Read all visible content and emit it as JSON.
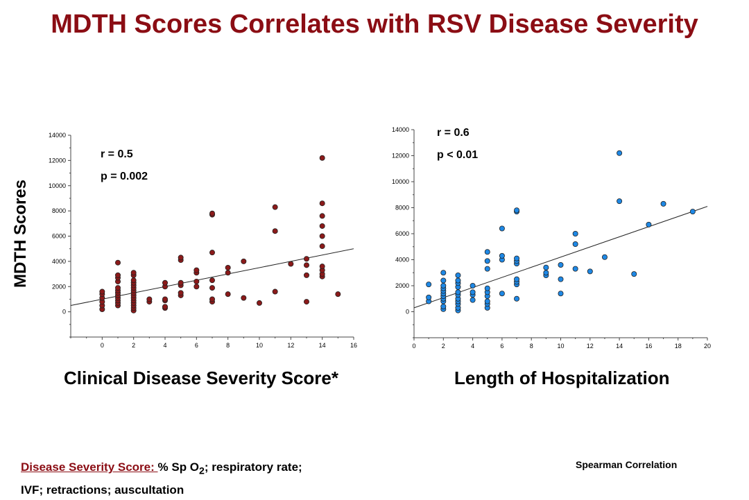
{
  "title": "MDTH Scores Correlates with RSV Disease Severity",
  "y_axis_label": "MDTH Scores",
  "footnote": {
    "label": "Disease Severity Score: ",
    "line1_pre": " % Sp O",
    "line1_sub": "2",
    "line1_post": "; respiratory rate;",
    "line2": "IVF; retractions; auscultation"
  },
  "spearman_note": "Spearman Correlation",
  "colors": {
    "title": "#8b0d14",
    "left_points": "#8b1a1a",
    "right_points": "#1e88e5"
  },
  "chart_data": [
    {
      "type": "scatter",
      "title": "",
      "xlabel": "Clinical Disease Severity Score*",
      "ylabel": "MDTH Scores",
      "xlim": [
        -2,
        16
      ],
      "ylim": [
        -2000,
        14000
      ],
      "x_ticks": [
        0,
        2,
        4,
        6,
        8,
        10,
        12,
        14,
        16
      ],
      "y_ticks": [
        0,
        2000,
        4000,
        6000,
        8000,
        10000,
        12000,
        14000
      ],
      "annotations": [
        "r = 0.5",
        "p = 0.002"
      ],
      "trendline": {
        "x": [
          -2,
          16
        ],
        "y": [
          500,
          5000
        ]
      },
      "color": "#8b1a1a",
      "points": [
        [
          0,
          200
        ],
        [
          0,
          500
        ],
        [
          0,
          800
        ],
        [
          0,
          1100
        ],
        [
          0,
          1400
        ],
        [
          0,
          1600
        ],
        [
          1,
          500
        ],
        [
          1,
          700
        ],
        [
          1,
          900
        ],
        [
          1,
          1100
        ],
        [
          1,
          1300
        ],
        [
          1,
          1500
        ],
        [
          1,
          1700
        ],
        [
          1,
          1900
        ],
        [
          1,
          2400
        ],
        [
          1,
          2700
        ],
        [
          1,
          2900
        ],
        [
          1,
          3900
        ],
        [
          2,
          100
        ],
        [
          2,
          300
        ],
        [
          2,
          500
        ],
        [
          2,
          700
        ],
        [
          2,
          900
        ],
        [
          2,
          1100
        ],
        [
          2,
          1300
        ],
        [
          2,
          1500
        ],
        [
          2,
          1700
        ],
        [
          2,
          1900
        ],
        [
          2,
          2100
        ],
        [
          2,
          2300
        ],
        [
          2,
          2500
        ],
        [
          2,
          2900
        ],
        [
          2,
          3100
        ],
        [
          3,
          800
        ],
        [
          3,
          1000
        ],
        [
          4,
          300
        ],
        [
          4,
          400
        ],
        [
          4,
          900
        ],
        [
          4,
          1000
        ],
        [
          4,
          2000
        ],
        [
          4,
          2300
        ],
        [
          5,
          1300
        ],
        [
          5,
          1500
        ],
        [
          5,
          2100
        ],
        [
          5,
          2300
        ],
        [
          5,
          4100
        ],
        [
          5,
          4300
        ],
        [
          6,
          2000
        ],
        [
          6,
          2400
        ],
        [
          6,
          3100
        ],
        [
          6,
          3300
        ],
        [
          7,
          800
        ],
        [
          7,
          1000
        ],
        [
          7,
          1900
        ],
        [
          7,
          2500
        ],
        [
          7,
          4700
        ],
        [
          7,
          7700
        ],
        [
          7,
          7800
        ],
        [
          8,
          1400
        ],
        [
          8,
          3100
        ],
        [
          8,
          3500
        ],
        [
          9,
          1100
        ],
        [
          9,
          4000
        ],
        [
          10,
          700
        ],
        [
          11,
          1600
        ],
        [
          11,
          6400
        ],
        [
          11,
          8300
        ],
        [
          12,
          3800
        ],
        [
          13,
          800
        ],
        [
          13,
          2900
        ],
        [
          13,
          3700
        ],
        [
          13,
          4200
        ],
        [
          14,
          2800
        ],
        [
          14,
          3000
        ],
        [
          14,
          3300
        ],
        [
          14,
          3600
        ],
        [
          14,
          5200
        ],
        [
          14,
          6000
        ],
        [
          14,
          6800
        ],
        [
          14,
          7600
        ],
        [
          14,
          8600
        ],
        [
          14,
          12200
        ],
        [
          15,
          1400
        ]
      ]
    },
    {
      "type": "scatter",
      "title": "",
      "xlabel": "Length of Hospitalization",
      "ylabel": "MDTH Scores",
      "xlim": [
        0,
        20
      ],
      "ylim": [
        -2000,
        14000
      ],
      "x_ticks": [
        0,
        2,
        4,
        6,
        8,
        10,
        12,
        14,
        16,
        18,
        20
      ],
      "y_ticks": [
        0,
        2000,
        4000,
        6000,
        8000,
        10000,
        12000,
        14000
      ],
      "annotations": [
        "r = 0.6",
        "p < 0.01"
      ],
      "trendline": {
        "x": [
          0,
          20
        ],
        "y": [
          300,
          8100
        ]
      },
      "color": "#1e88e5",
      "points": [
        [
          1,
          800
        ],
        [
          1,
          1100
        ],
        [
          1,
          2100
        ],
        [
          2,
          200
        ],
        [
          2,
          400
        ],
        [
          2,
          800
        ],
        [
          2,
          1000
        ],
        [
          2,
          1200
        ],
        [
          2,
          1400
        ],
        [
          2,
          1600
        ],
        [
          2,
          1800
        ],
        [
          2,
          2000
        ],
        [
          2,
          2400
        ],
        [
          2,
          3000
        ],
        [
          3,
          100
        ],
        [
          3,
          300
        ],
        [
          3,
          600
        ],
        [
          3,
          800
        ],
        [
          3,
          1000
        ],
        [
          3,
          1300
        ],
        [
          3,
          1500
        ],
        [
          3,
          1900
        ],
        [
          3,
          2200
        ],
        [
          3,
          2400
        ],
        [
          3,
          2800
        ],
        [
          4,
          900
        ],
        [
          4,
          1300
        ],
        [
          4,
          1500
        ],
        [
          4,
          2000
        ],
        [
          5,
          300
        ],
        [
          5,
          600
        ],
        [
          5,
          800
        ],
        [
          5,
          1200
        ],
        [
          5,
          1500
        ],
        [
          5,
          1800
        ],
        [
          5,
          3300
        ],
        [
          5,
          3900
        ],
        [
          5,
          4600
        ],
        [
          6,
          1400
        ],
        [
          6,
          4000
        ],
        [
          6,
          4300
        ],
        [
          6,
          6400
        ],
        [
          7,
          1000
        ],
        [
          7,
          2100
        ],
        [
          7,
          2300
        ],
        [
          7,
          2500
        ],
        [
          7,
          3700
        ],
        [
          7,
          3900
        ],
        [
          7,
          4100
        ],
        [
          7,
          7700
        ],
        [
          7,
          7800
        ],
        [
          9,
          2800
        ],
        [
          9,
          3000
        ],
        [
          9,
          3400
        ],
        [
          10,
          1400
        ],
        [
          10,
          2500
        ],
        [
          10,
          3600
        ],
        [
          11,
          3300
        ],
        [
          11,
          5200
        ],
        [
          11,
          6000
        ],
        [
          12,
          3100
        ],
        [
          13,
          4200
        ],
        [
          14,
          8500
        ],
        [
          14,
          12200
        ],
        [
          15,
          2900
        ],
        [
          16,
          6700
        ],
        [
          17,
          8300
        ],
        [
          19,
          7700
        ]
      ]
    }
  ]
}
